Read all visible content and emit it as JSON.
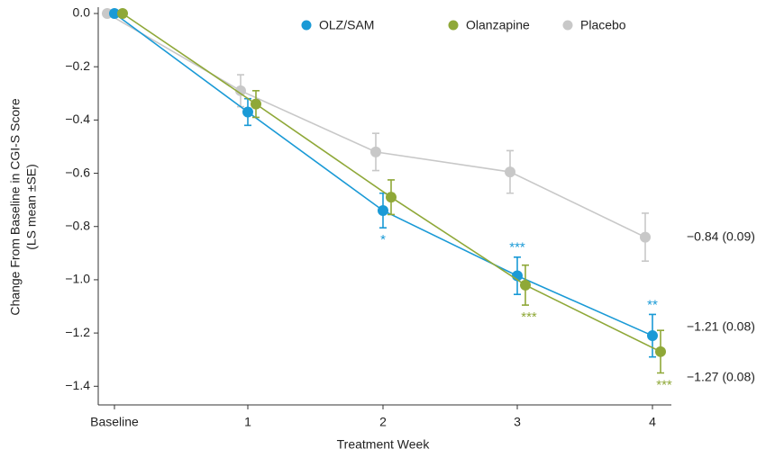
{
  "chart_data": {
    "type": "line",
    "x_label": "Treatment Week",
    "y_label": [
      "Change From Baseline in CGI-S Score",
      "(LS mean ±SE)"
    ],
    "categories": [
      "Baseline",
      "1",
      "2",
      "3",
      "4"
    ],
    "ylim": [
      -1.47,
      0
    ],
    "yticks": [
      {
        "value": 0,
        "label": "0.0"
      },
      {
        "value": -0.2,
        "label": "−0.2"
      },
      {
        "value": -0.4,
        "label": "−0.4"
      },
      {
        "value": -0.6,
        "label": "−0.6"
      },
      {
        "value": -0.8,
        "label": "−0.8"
      },
      {
        "value": -1.0,
        "label": "−1.0"
      },
      {
        "value": -1.2,
        "label": "−1.2"
      },
      {
        "value": -1.4,
        "label": "−1.4"
      }
    ],
    "series": [
      {
        "name": "OLZ/SAM",
        "color": "#1a9ad6",
        "values": [
          0,
          -0.37,
          -0.74,
          -0.985,
          -1.21
        ],
        "errors": [
          null,
          0.05,
          0.065,
          0.07,
          0.08
        ],
        "significance": [
          null,
          null,
          "*",
          "***",
          "**"
        ]
      },
      {
        "name": "Olanzapine",
        "color": "#8fa838",
        "values": [
          0,
          -0.34,
          -0.69,
          -1.02,
          -1.27
        ],
        "errors": [
          null,
          0.05,
          0.065,
          0.075,
          0.08
        ],
        "significance": [
          null,
          null,
          null,
          "***",
          "***"
        ]
      },
      {
        "name": "Placebo",
        "color": "#c8c8c8",
        "values": [
          0,
          -0.29,
          -0.52,
          -0.595,
          -0.84
        ],
        "errors": [
          null,
          0.06,
          0.07,
          0.08,
          0.09
        ],
        "significance": [
          null,
          null,
          null,
          null,
          null
        ]
      }
    ],
    "annotations": [
      "−0.84 (0.09)",
      "−1.21 (0.08)",
      "−1.27 (0.08)"
    ]
  }
}
